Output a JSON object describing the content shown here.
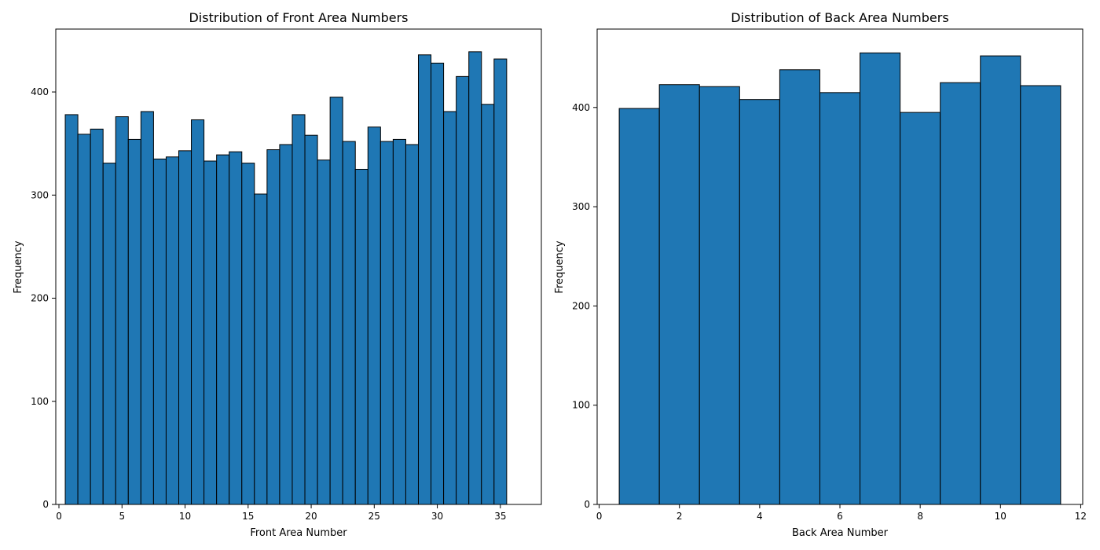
{
  "colors": {
    "bar_fill": "#1f77b4",
    "bar_edge": "#000000",
    "axis": "#000000",
    "background": "#ffffff"
  },
  "chart_data": [
    {
      "type": "bar",
      "title": "Distribution of Front Area Numbers",
      "xlabel": "Front Area Number",
      "ylabel": "Frequency",
      "grid": false,
      "xlim": [
        -0.25,
        38.25
      ],
      "ylim": [
        0,
        461
      ],
      "xticks": [
        0,
        5,
        10,
        15,
        20,
        25,
        30,
        35
      ],
      "yticks": [
        0,
        100,
        200,
        300,
        400
      ],
      "bin_width": 1,
      "categories": [
        1,
        2,
        3,
        4,
        5,
        6,
        7,
        8,
        9,
        10,
        11,
        12,
        13,
        14,
        15,
        16,
        17,
        18,
        19,
        20,
        21,
        22,
        23,
        24,
        25,
        26,
        27,
        28,
        29,
        30,
        31,
        32,
        33,
        34,
        35,
        36
      ],
      "values": [
        378,
        359,
        364,
        331,
        376,
        354,
        381,
        335,
        337,
        343,
        373,
        333,
        339,
        342,
        331,
        301,
        344,
        349,
        378,
        358,
        334,
        395,
        352,
        325,
        366,
        352,
        354,
        349,
        436,
        428,
        381,
        415,
        439,
        388,
        432,
        0
      ]
    },
    {
      "type": "bar",
      "title": "Distribution of Back Area Numbers",
      "xlabel": "Back Area Number",
      "ylabel": "Frequency",
      "grid": false,
      "xlim": [
        -0.05,
        12.05
      ],
      "ylim": [
        0,
        479
      ],
      "xticks": [
        0,
        2,
        4,
        6,
        8,
        10,
        12
      ],
      "yticks": [
        0,
        100,
        200,
        300,
        400
      ],
      "bin_width": 1,
      "categories": [
        1,
        2,
        3,
        4,
        5,
        6,
        7,
        8,
        9,
        10,
        11
      ],
      "values": [
        399,
        423,
        421,
        408,
        438,
        415,
        455,
        395,
        425,
        452,
        422
      ]
    }
  ]
}
